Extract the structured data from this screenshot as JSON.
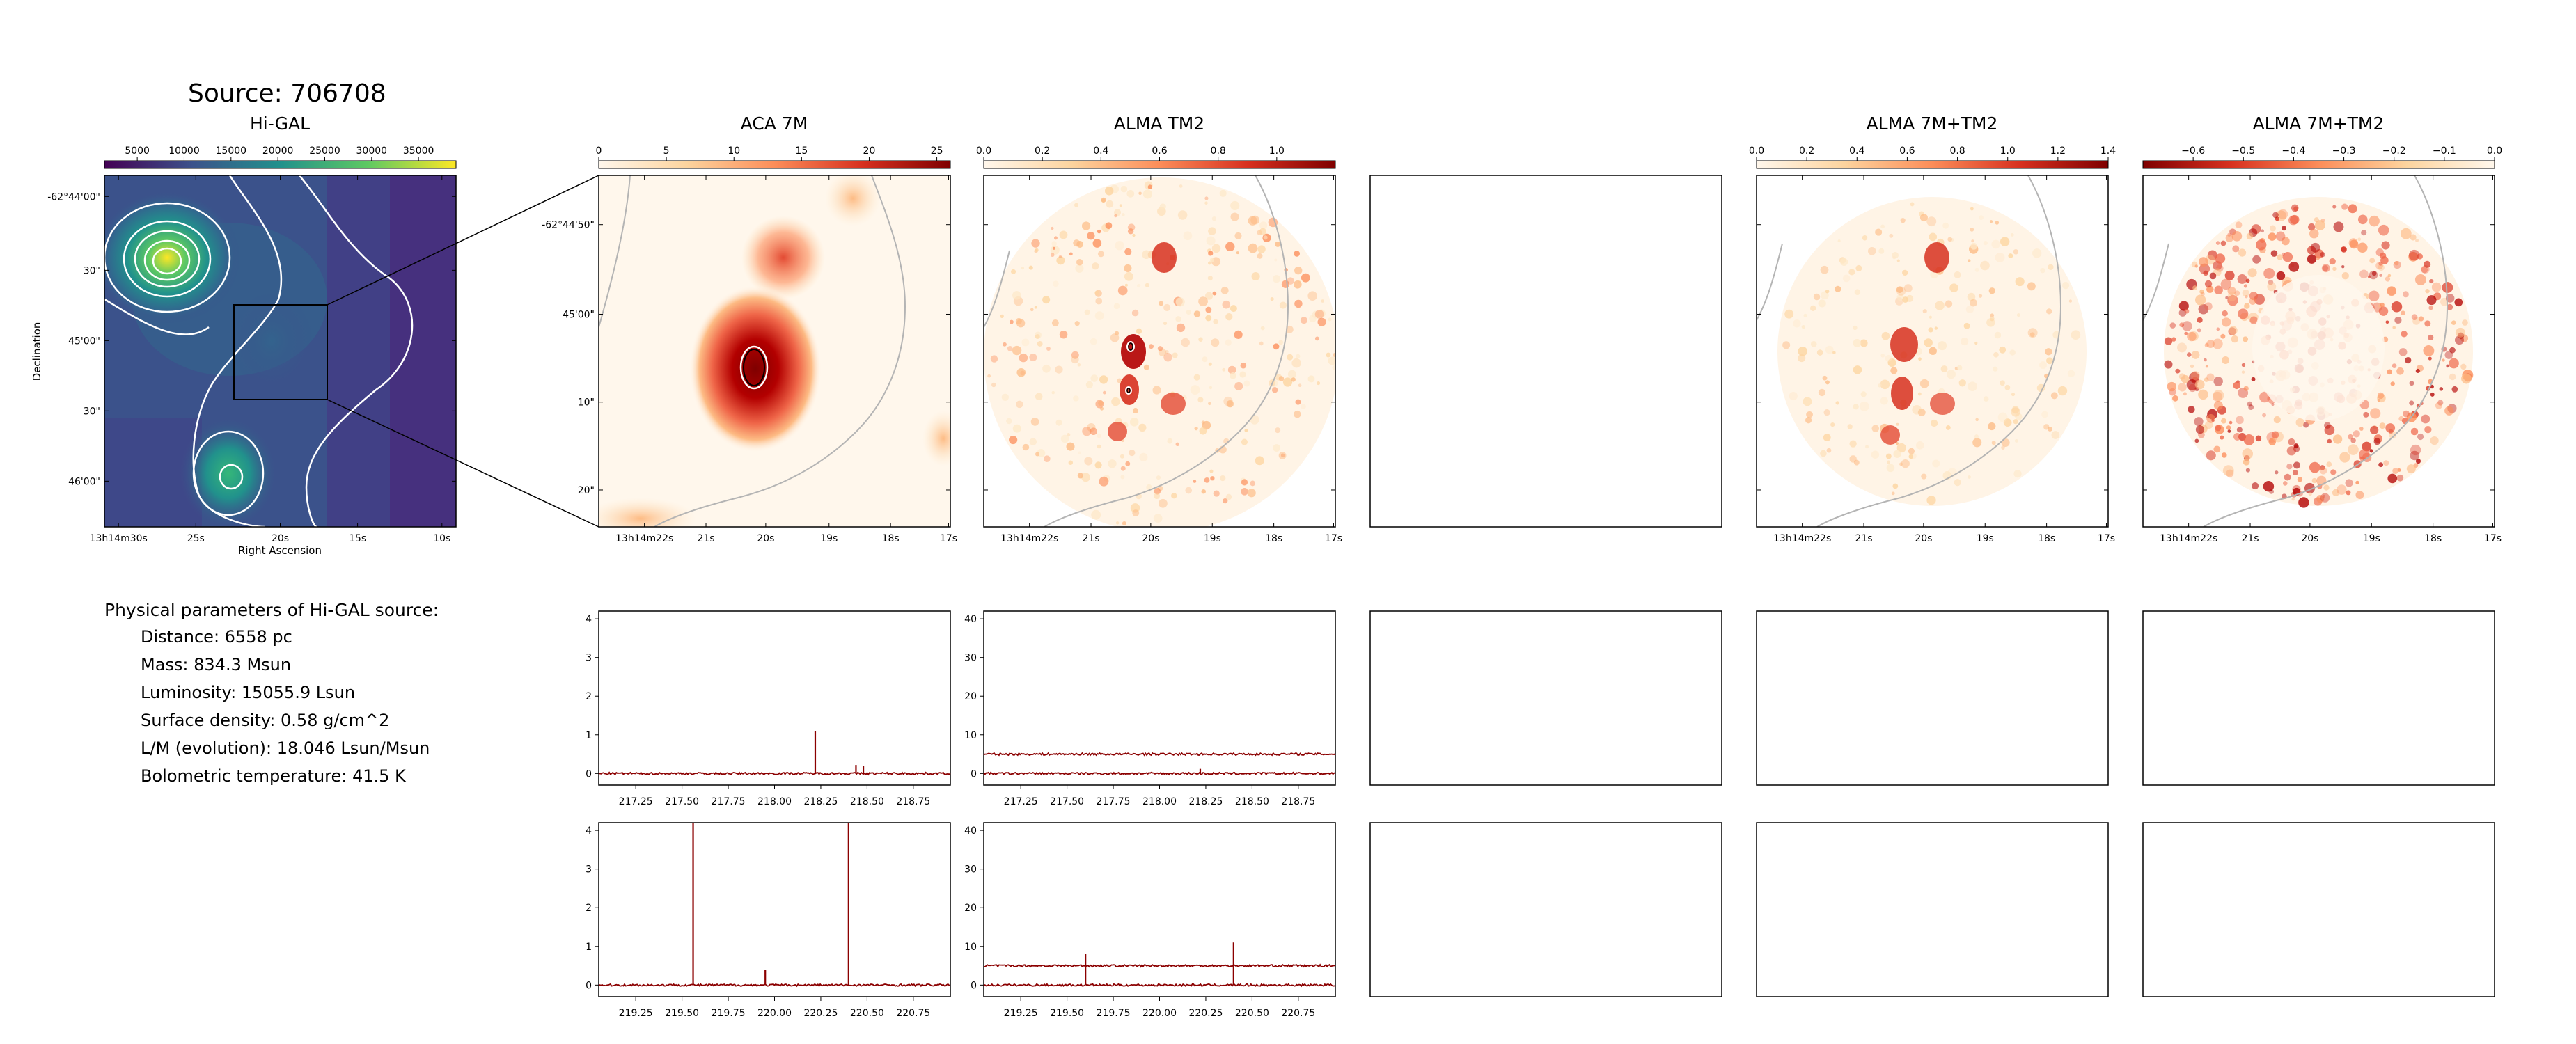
{
  "figure": {
    "title": "Source: 706708"
  },
  "colors": {
    "frame": "#000000",
    "spectrum": "#8b0000",
    "contour": "#ffffff",
    "outline": "#b4b4b4",
    "colormap_viridis": [
      "#440154",
      "#3b528b",
      "#21918c",
      "#5ec962",
      "#fde725"
    ],
    "colormap_orrd": [
      "#fff7ec",
      "#fdd49e",
      "#fc8d59",
      "#d7301f",
      "#7f0000"
    ]
  },
  "panels": {
    "higal": {
      "title": "Hi-GAL",
      "colorbar_ticks": [
        "5000",
        "10000",
        "15000",
        "20000",
        "25000",
        "30000",
        "35000"
      ],
      "colorbar_range": [
        1500,
        39000
      ],
      "y_ticks": [
        "-62°44'00\"",
        "30\"",
        "45'00\"",
        "30\"",
        "46'00\""
      ],
      "x_ticks": [
        "13h14m30s",
        "25s",
        "20s",
        "15s",
        "10s"
      ],
      "xlabel": "Right Ascension",
      "ylabel": "Declination",
      "colormap": "viridis",
      "contours": "white",
      "zoom_box": true
    },
    "aca7m": {
      "title": "ACA 7M",
      "colorbar_ticks": [
        "0",
        "5",
        "10",
        "15",
        "20",
        "25"
      ],
      "colorbar_range": [
        0,
        26
      ],
      "y_ticks": [
        "-62°44'50\"",
        "45'00\"",
        "10\"",
        "20\""
      ],
      "x_ticks": [
        "13h14m22s",
        "21s",
        "20s",
        "19s",
        "18s",
        "17s"
      ],
      "colormap": "OrRd"
    },
    "tm2": {
      "title": "ALMA TM2",
      "colorbar_ticks": [
        "0.0",
        "0.2",
        "0.4",
        "0.6",
        "0.8",
        "1.0"
      ],
      "colorbar_range": [
        0,
        1.2
      ],
      "x_ticks": [
        "13h14m22s",
        "21s",
        "20s",
        "19s",
        "18s",
        "17s"
      ],
      "colormap": "OrRd"
    },
    "empty": {
      "title": ""
    },
    "combined": {
      "title": "ALMA 7M+TM2",
      "colorbar_ticks": [
        "0.0",
        "0.2",
        "0.4",
        "0.6",
        "0.8",
        "1.0",
        "1.2",
        "1.4"
      ],
      "colorbar_range": [
        0,
        1.4
      ],
      "x_ticks": [
        "13h14m22s",
        "21s",
        "20s",
        "19s",
        "18s",
        "17s"
      ],
      "colormap": "OrRd"
    },
    "residual": {
      "title": "ALMA 7M+TM2",
      "colorbar_ticks": [
        "−0.6",
        "−0.5",
        "−0.4",
        "−0.3",
        "−0.2",
        "−0.1",
        "0.0"
      ],
      "colorbar_range": [
        -0.7,
        0
      ],
      "x_ticks": [
        "13h14m22s",
        "21s",
        "20s",
        "19s",
        "18s",
        "17s"
      ],
      "colormap": "OrRd (reversed)"
    }
  },
  "parameters": {
    "heading": "Physical parameters of Hi-GAL source:",
    "distance": "Distance: 6558 pc",
    "mass": "Mass: 834.3 Msun",
    "luminosity": "Luminosity: 15055.9 Lsun",
    "surface_density": "Surface density: 0.58 g/cm^2",
    "lm_ratio": "L/M (evolution): 18.046 Lsun/Msun",
    "tbol": "Bolometric temperature: 41.5 K"
  },
  "chart_data": [
    {
      "type": "line",
      "panel": "spectrum-aca-row1",
      "x_ticks": [
        "217.25",
        "217.50",
        "217.75",
        "218.00",
        "218.25",
        "218.50",
        "218.75"
      ],
      "y_ticks": [
        "0",
        "1",
        "2",
        "3",
        "4"
      ],
      "xlim": [
        217.05,
        218.95
      ],
      "ylim": [
        -0.3,
        4.2
      ],
      "series": [
        {
          "baseline": 0.0,
          "lines": [
            {
              "x": 218.22,
              "y": 1.1
            },
            {
              "x": 218.44,
              "y": 0.22
            },
            {
              "x": 218.48,
              "y": 0.2
            }
          ]
        }
      ]
    },
    {
      "type": "line",
      "panel": "spectrum-tm2-row1",
      "x_ticks": [
        "217.25",
        "217.50",
        "217.75",
        "218.00",
        "218.25",
        "218.50",
        "218.75"
      ],
      "y_ticks": [
        "0",
        "10",
        "20",
        "30",
        "40"
      ],
      "xlim": [
        217.05,
        218.95
      ],
      "ylim": [
        -3,
        42
      ],
      "series": [
        {
          "baseline": 0.0,
          "lines": [
            {
              "x": 218.22,
              "y": 1.2
            }
          ]
        },
        {
          "baseline": 5.0,
          "lines": []
        }
      ]
    },
    {
      "type": "line",
      "panel": "spectrum-aca-row2",
      "x_ticks": [
        "219.25",
        "219.50",
        "219.75",
        "220.00",
        "220.25",
        "220.50",
        "220.75"
      ],
      "y_ticks": [
        "0",
        "1",
        "2",
        "3",
        "4"
      ],
      "xlim": [
        219.05,
        220.95
      ],
      "ylim": [
        -0.3,
        4.2
      ],
      "series": [
        {
          "baseline": 0.0,
          "lines": [
            {
              "x": 219.56,
              "y": 4.2
            },
            {
              "x": 219.95,
              "y": 0.4
            },
            {
              "x": 220.4,
              "y": 4.2
            }
          ]
        }
      ]
    },
    {
      "type": "line",
      "panel": "spectrum-tm2-row2",
      "x_ticks": [
        "219.25",
        "219.50",
        "219.75",
        "220.00",
        "220.25",
        "220.50",
        "220.75"
      ],
      "y_ticks": [
        "0",
        "10",
        "20",
        "30",
        "40"
      ],
      "xlim": [
        219.05,
        220.95
      ],
      "ylim": [
        -3,
        42
      ],
      "series": [
        {
          "baseline": 0.0,
          "lines": [
            {
              "x": 219.6,
              "y": 8
            },
            {
              "x": 220.4,
              "y": 11
            }
          ]
        },
        {
          "baseline": 5.0,
          "lines": []
        }
      ]
    }
  ]
}
